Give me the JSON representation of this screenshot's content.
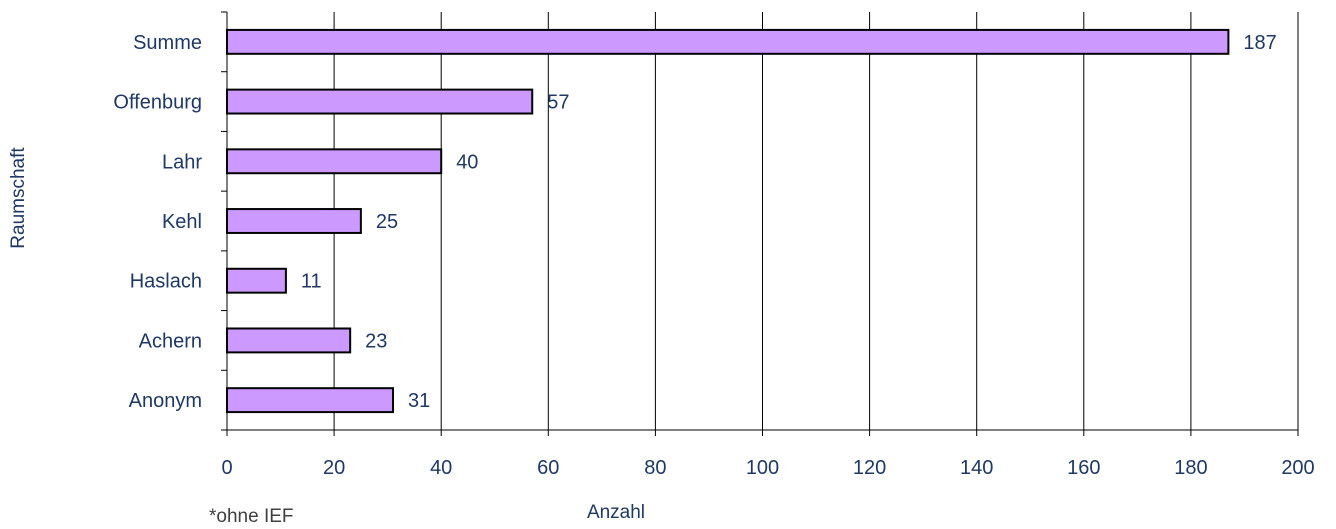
{
  "chart_data": {
    "type": "bar",
    "orientation": "horizontal",
    "categories": [
      "Summe",
      "Offenburg",
      "Lahr",
      "Kehl",
      "Haslach",
      "Achern",
      "Anonym"
    ],
    "values": [
      187,
      57,
      40,
      25,
      11,
      23,
      31
    ],
    "data_labels": [
      "187",
      "57",
      "40",
      "25",
      "11",
      "23",
      "31"
    ],
    "xlabel": "Anzahl",
    "ylabel": "Raumschaft",
    "xlim": [
      0,
      200
    ],
    "x_ticks": [
      0,
      20,
      40,
      60,
      80,
      100,
      120,
      140,
      160,
      180,
      200
    ],
    "x_tick_labels": [
      "0",
      "20",
      "40",
      "60",
      "80",
      "100",
      "120",
      "140",
      "160",
      "180",
      "200"
    ],
    "grid": "vertical",
    "legend": "none",
    "footnote": "*ohne IEF",
    "colors": {
      "bar_fill": "#cc99ff",
      "bar_stroke": "#000000",
      "text": "#1f3864",
      "grid": "#000000",
      "footnote_text": "#404040"
    }
  }
}
